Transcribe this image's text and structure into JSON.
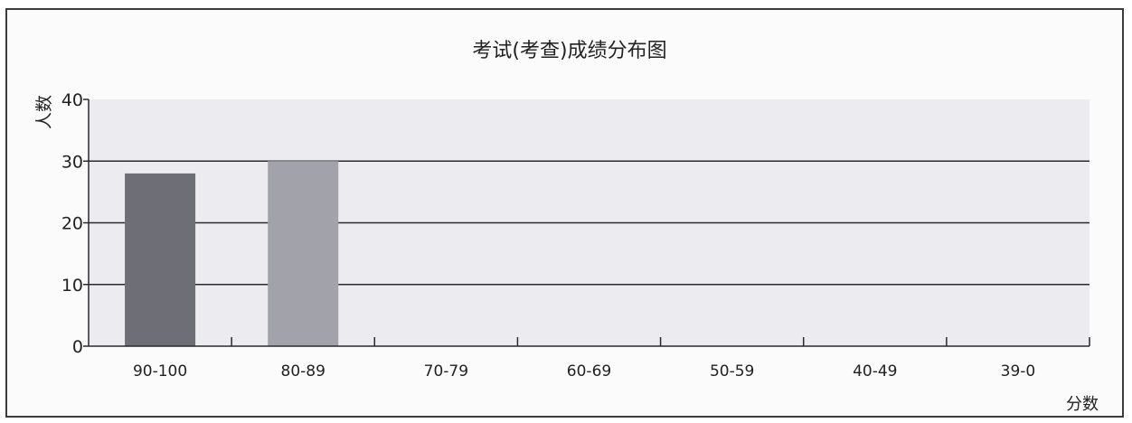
{
  "chart_data": {
    "type": "bar",
    "title": "考试(考查)成绩分布图",
    "xlabel": "分数",
    "ylabel": "人数",
    "categories": [
      "90-100",
      "80-89",
      "70-79",
      "60-69",
      "50-59",
      "40-49",
      "39-0"
    ],
    "values": [
      28,
      30,
      0,
      0,
      0,
      0,
      0
    ],
    "ylim": [
      0,
      40
    ],
    "yticks": [
      0,
      10,
      20,
      30,
      40
    ],
    "grid": true,
    "colors": [
      "#6e6e76",
      "#a2a2aa"
    ],
    "plot_background": "#ececf0"
  }
}
